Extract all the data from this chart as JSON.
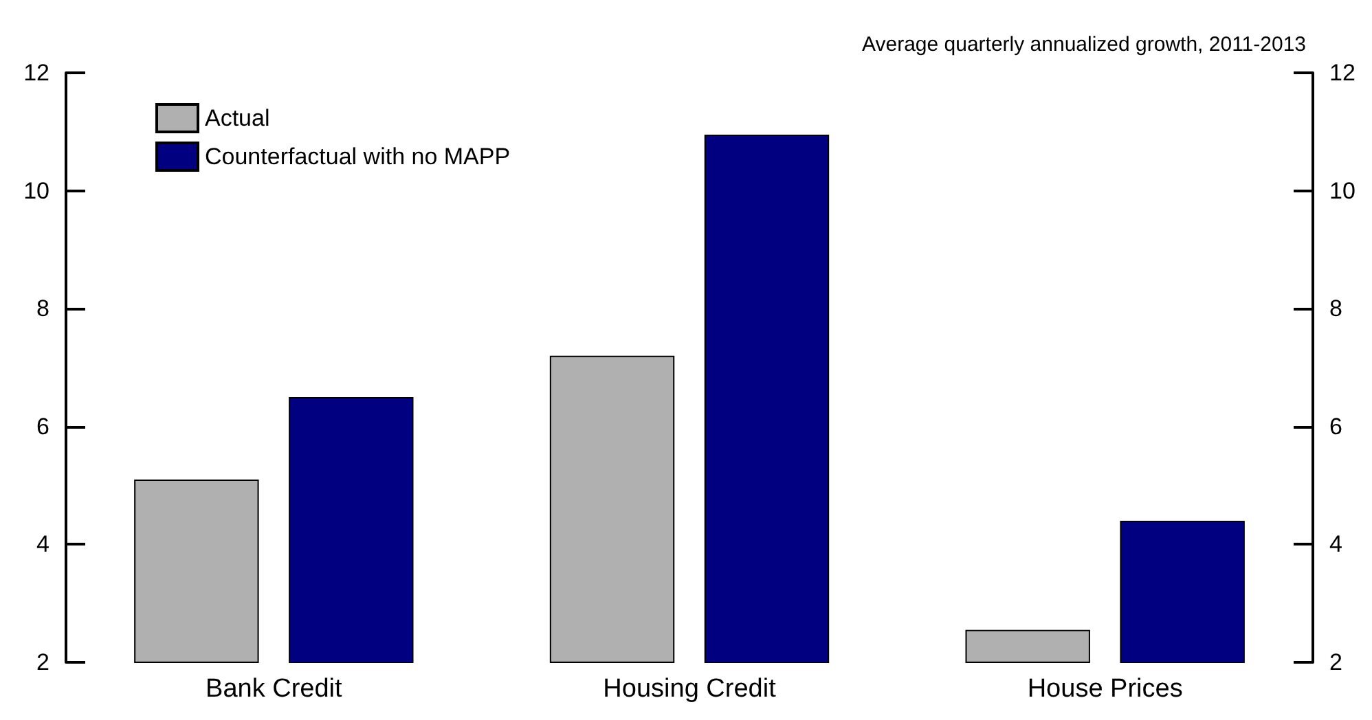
{
  "chart_data": {
    "type": "bar",
    "subtitle": "Average quarterly annualized growth, 2011-2013",
    "categories": [
      "Bank Credit",
      "Housing Credit",
      "House Prices"
    ],
    "series": [
      {
        "name": "Actual",
        "color": "#b0b0b0",
        "values": [
          5.1,
          7.2,
          2.55
        ]
      },
      {
        "name": "Counterfactual with no MAPP",
        "color": "#000080",
        "values": [
          6.5,
          10.95,
          4.4
        ]
      }
    ],
    "ylim": [
      2,
      12
    ],
    "yticks": [
      2,
      4,
      6,
      8,
      10,
      12
    ],
    "y2lim": [
      2,
      12
    ],
    "y2ticks": [
      2,
      4,
      6,
      8,
      10,
      12
    ],
    "legend": "top left"
  }
}
